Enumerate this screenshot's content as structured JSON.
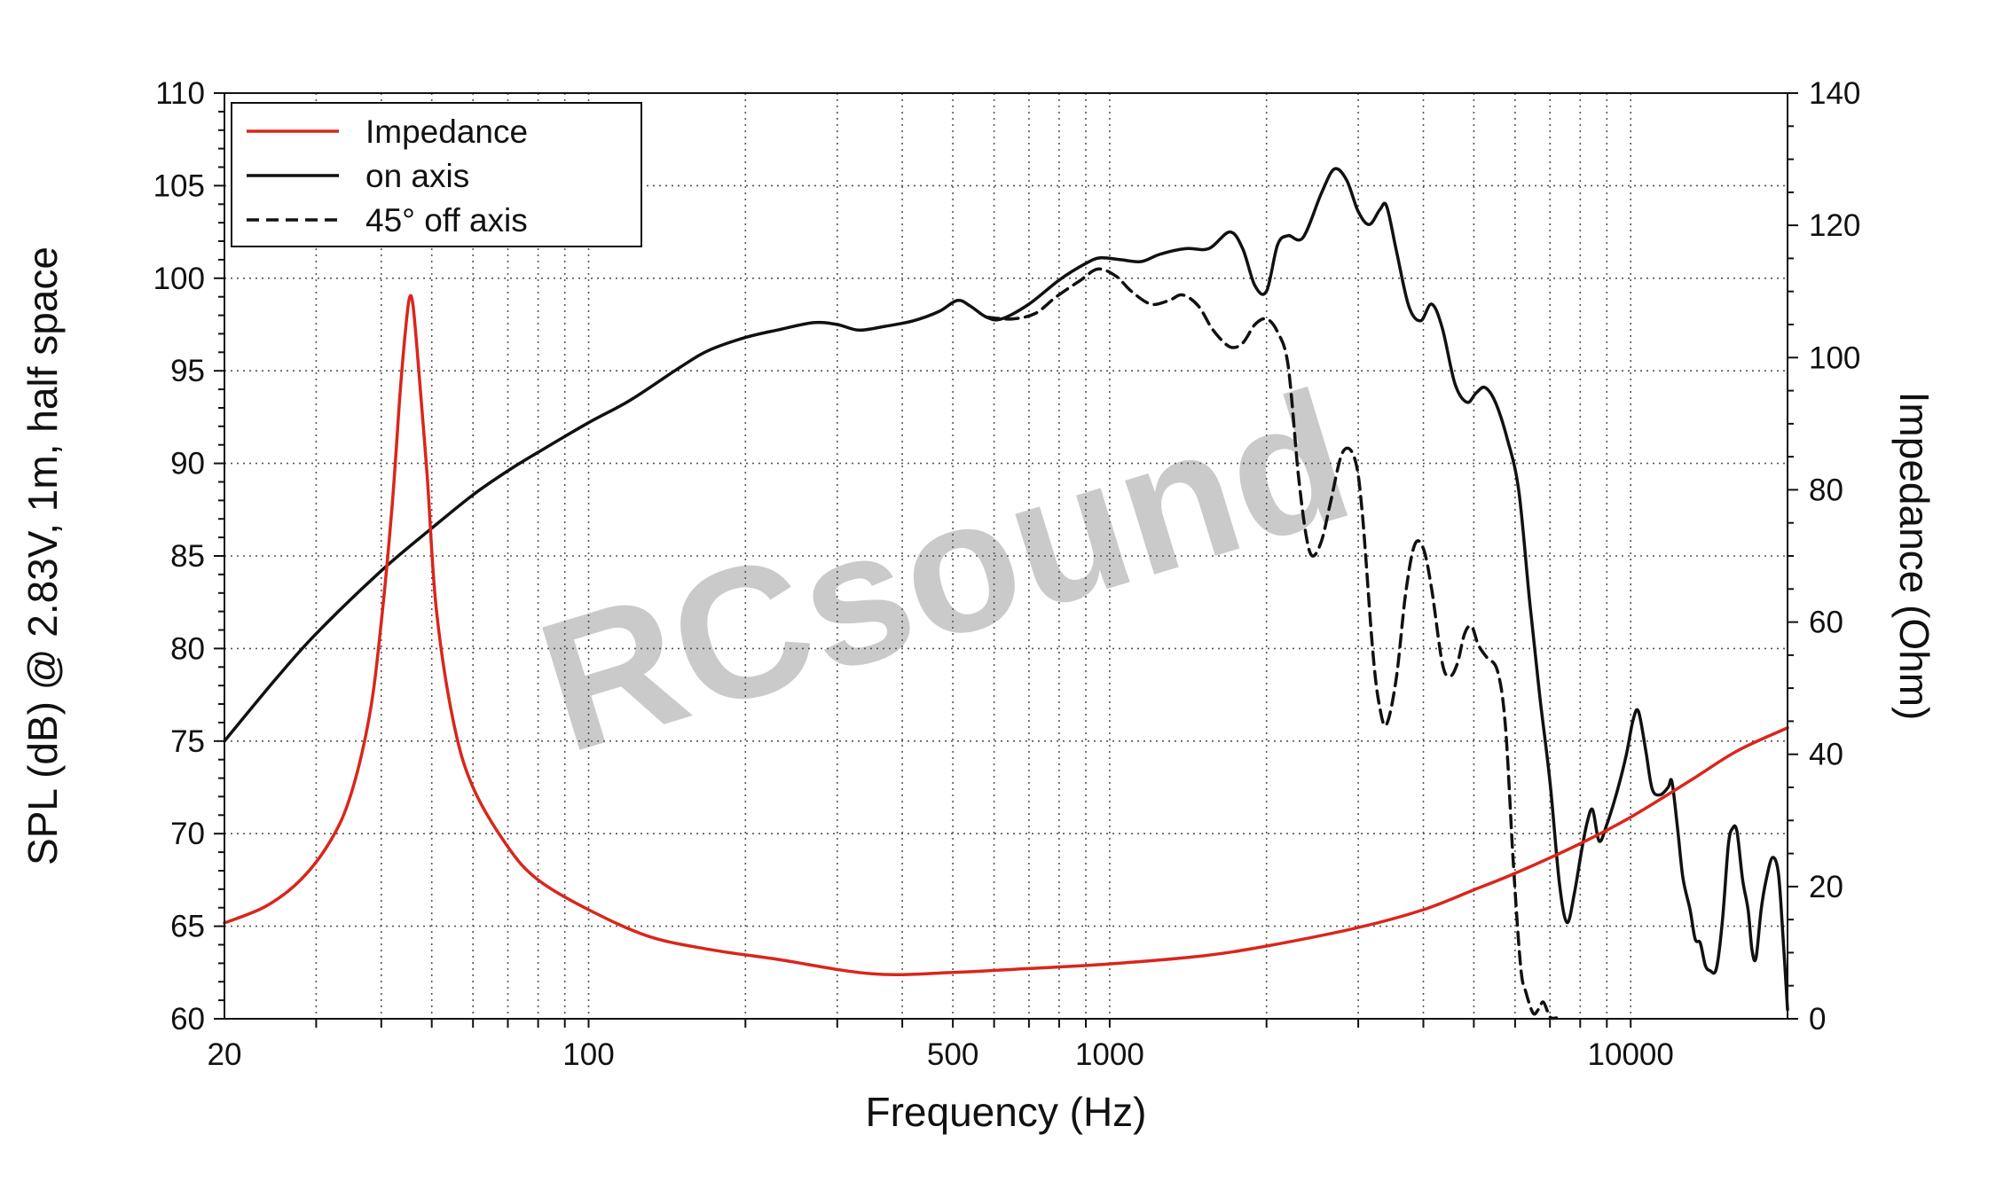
{
  "chart_data": {
    "type": "line",
    "watermark": "RCsound",
    "xlabel": "Frequency (Hz)",
    "ylabel": "SPL (dB) @ 2.83V, 1m, half space",
    "y2label": "Impedance (Ohm)",
    "x_scale": "log",
    "xlim": [
      20,
      20000
    ],
    "ylim": [
      60,
      110
    ],
    "y2lim": [
      0,
      140
    ],
    "grid": true,
    "legend_position": "top-left",
    "x_tick_labels": [
      {
        "value": 20,
        "label": "20"
      },
      {
        "value": 100,
        "label": "100"
      },
      {
        "value": 500,
        "label": "500"
      },
      {
        "value": 1000,
        "label": "1000"
      },
      {
        "value": 10000,
        "label": "10000"
      }
    ],
    "y_tick_labels": [
      "60",
      "65",
      "70",
      "75",
      "80",
      "85",
      "90",
      "95",
      "100",
      "105",
      "110"
    ],
    "y2_tick_labels": [
      "0",
      "20",
      "40",
      "60",
      "80",
      "100",
      "120",
      "140"
    ],
    "series": [
      {
        "name": "Impedance",
        "axis": "right",
        "color": "#d9261c",
        "style": "solid",
        "points": [
          [
            20,
            14.5
          ],
          [
            24,
            17
          ],
          [
            28,
            21
          ],
          [
            32,
            27
          ],
          [
            35,
            34
          ],
          [
            38,
            46
          ],
          [
            40,
            60
          ],
          [
            42,
            78
          ],
          [
            43.5,
            95
          ],
          [
            44.5,
            104
          ],
          [
            45.3,
            109
          ],
          [
            46,
            108
          ],
          [
            47,
            100
          ],
          [
            49,
            82
          ],
          [
            51,
            62
          ],
          [
            55,
            45
          ],
          [
            60,
            35
          ],
          [
            70,
            26
          ],
          [
            80,
            21
          ],
          [
            100,
            16.5
          ],
          [
            130,
            12.5
          ],
          [
            170,
            10.5
          ],
          [
            230,
            9
          ],
          [
            350,
            6.8
          ],
          [
            500,
            7
          ],
          [
            700,
            7.6
          ],
          [
            1000,
            8.3
          ],
          [
            1500,
            9.5
          ],
          [
            2000,
            11
          ],
          [
            3000,
            13.8
          ],
          [
            4000,
            16.5
          ],
          [
            5000,
            19.5
          ],
          [
            6000,
            22
          ],
          [
            8000,
            26.5
          ],
          [
            10000,
            30.5
          ],
          [
            13000,
            36
          ],
          [
            16000,
            40.5
          ],
          [
            20000,
            44
          ]
        ]
      },
      {
        "name": "on axis",
        "axis": "left",
        "color": "#111111",
        "style": "solid",
        "points": [
          [
            20,
            75
          ],
          [
            25,
            78.3
          ],
          [
            30,
            80.8
          ],
          [
            40,
            84.2
          ],
          [
            50,
            86.5
          ],
          [
            60,
            88.3
          ],
          [
            70,
            89.6
          ],
          [
            80,
            90.6
          ],
          [
            100,
            92.2
          ],
          [
            120,
            93.4
          ],
          [
            150,
            95.2
          ],
          [
            170,
            96.1
          ],
          [
            200,
            96.8
          ],
          [
            230,
            97.2
          ],
          [
            270,
            97.6
          ],
          [
            300,
            97.5
          ],
          [
            330,
            97.2
          ],
          [
            370,
            97.4
          ],
          [
            420,
            97.7
          ],
          [
            470,
            98.2
          ],
          [
            510,
            98.8
          ],
          [
            540,
            98.5
          ],
          [
            580,
            97.9
          ],
          [
            620,
            97.8
          ],
          [
            700,
            98.6
          ],
          [
            800,
            99.9
          ],
          [
            900,
            100.8
          ],
          [
            960,
            101.1
          ],
          [
            1050,
            101
          ],
          [
            1150,
            100.9
          ],
          [
            1250,
            101.3
          ],
          [
            1400,
            101.6
          ],
          [
            1550,
            101.6
          ],
          [
            1700,
            102.5
          ],
          [
            1800,
            101.6
          ],
          [
            1900,
            99.6
          ],
          [
            2000,
            99.3
          ],
          [
            2100,
            101.8
          ],
          [
            2200,
            102.3
          ],
          [
            2350,
            102.2
          ],
          [
            2550,
            104.6
          ],
          [
            2700,
            105.9
          ],
          [
            2850,
            105.3
          ],
          [
            3000,
            103.6
          ],
          [
            3150,
            102.9
          ],
          [
            3300,
            103.7
          ],
          [
            3400,
            103.9
          ],
          [
            3550,
            101.5
          ],
          [
            3750,
            98.5
          ],
          [
            3950,
            97.7
          ],
          [
            4150,
            98.6
          ],
          [
            4350,
            97.3
          ],
          [
            4600,
            94.3
          ],
          [
            4850,
            93.3
          ],
          [
            5050,
            93.8
          ],
          [
            5250,
            94.1
          ],
          [
            5500,
            93.3
          ],
          [
            5800,
            91.3
          ],
          [
            6100,
            88.5
          ],
          [
            6400,
            82.5
          ],
          [
            6700,
            77.3
          ],
          [
            7000,
            72.8
          ],
          [
            7300,
            67.3
          ],
          [
            7550,
            65.2
          ],
          [
            7800,
            66.8
          ],
          [
            8050,
            69.1
          ],
          [
            8250,
            70.6
          ],
          [
            8450,
            71.3
          ],
          [
            8700,
            69.6
          ],
          [
            9000,
            70.5
          ],
          [
            9400,
            72.2
          ],
          [
            9800,
            74.2
          ],
          [
            10100,
            76.1
          ],
          [
            10350,
            76.6
          ],
          [
            10700,
            74.4
          ],
          [
            11000,
            72.4
          ],
          [
            11400,
            72.1
          ],
          [
            11800,
            72.5
          ],
          [
            12000,
            72.8
          ],
          [
            12300,
            70.3
          ],
          [
            12600,
            67.6
          ],
          [
            13000,
            65.9
          ],
          [
            13300,
            64.3
          ],
          [
            13600,
            64.1
          ],
          [
            13900,
            62.9
          ],
          [
            14200,
            62.6
          ],
          [
            14600,
            62.7
          ],
          [
            15000,
            65.3
          ],
          [
            15400,
            69.4
          ],
          [
            15700,
            70.3
          ],
          [
            16000,
            70.1
          ],
          [
            16400,
            67.5
          ],
          [
            16800,
            65.9
          ],
          [
            17100,
            63.7
          ],
          [
            17400,
            63.3
          ],
          [
            17800,
            65.9
          ],
          [
            18200,
            67.5
          ],
          [
            18700,
            68.7
          ],
          [
            19200,
            67.9
          ],
          [
            19600,
            64.5
          ],
          [
            20000,
            60.5
          ]
        ]
      },
      {
        "name": "45° off axis",
        "axis": "left",
        "color": "#111111",
        "style": "dashed",
        "points": [
          [
            580,
            97.9
          ],
          [
            650,
            97.8
          ],
          [
            720,
            98.1
          ],
          [
            790,
            99
          ],
          [
            880,
            99.9
          ],
          [
            950,
            100.5
          ],
          [
            1030,
            100.1
          ],
          [
            1100,
            99.3
          ],
          [
            1200,
            98.6
          ],
          [
            1300,
            98.8
          ],
          [
            1380,
            99.1
          ],
          [
            1480,
            98.5
          ],
          [
            1580,
            97.2
          ],
          [
            1700,
            96.3
          ],
          [
            1800,
            96.5
          ],
          [
            1900,
            97.5
          ],
          [
            2000,
            97.8
          ],
          [
            2100,
            97.1
          ],
          [
            2200,
            95.3
          ],
          [
            2300,
            89.5
          ],
          [
            2380,
            86.2
          ],
          [
            2450,
            85
          ],
          [
            2550,
            85.8
          ],
          [
            2650,
            87.8
          ],
          [
            2800,
            90.6
          ],
          [
            2950,
            90.3
          ],
          [
            3050,
            87.5
          ],
          [
            3200,
            79.8
          ],
          [
            3300,
            76.8
          ],
          [
            3400,
            75.9
          ],
          [
            3550,
            78.4
          ],
          [
            3700,
            83
          ],
          [
            3850,
            85.6
          ],
          [
            4000,
            85.4
          ],
          [
            4150,
            83.2
          ],
          [
            4350,
            79.2
          ],
          [
            4500,
            78.5
          ],
          [
            4650,
            79.2
          ],
          [
            4800,
            80.8
          ],
          [
            4950,
            81.2
          ],
          [
            5100,
            80.2
          ],
          [
            5300,
            79.5
          ],
          [
            5550,
            78.8
          ],
          [
            5750,
            75.8
          ],
          [
            5950,
            68.5
          ],
          [
            6150,
            62.8
          ],
          [
            6300,
            61.4
          ],
          [
            6500,
            60.3
          ],
          [
            6650,
            60.5
          ],
          [
            6800,
            60.9
          ],
          [
            7000,
            60.1
          ],
          [
            7200,
            60.05
          ]
        ]
      }
    ]
  }
}
